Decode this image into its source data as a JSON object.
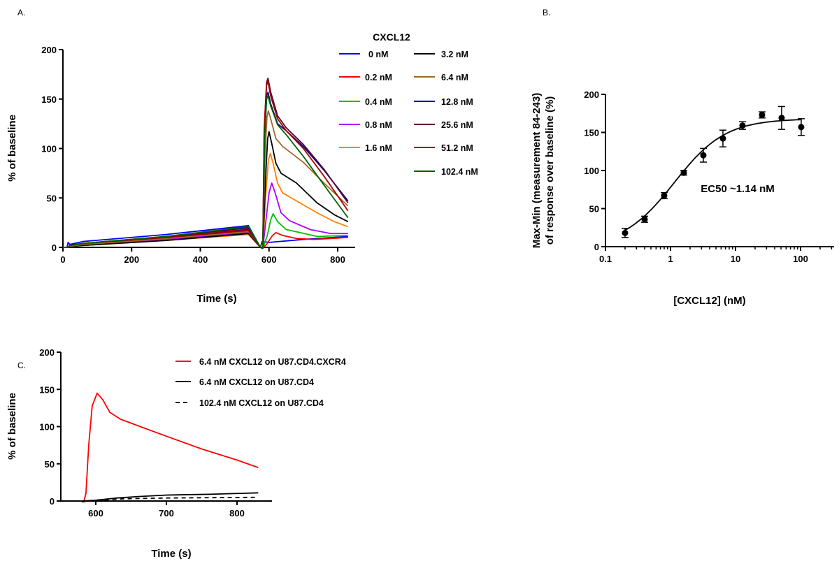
{
  "chart_data": [
    {
      "panel": "A.",
      "type": "line",
      "xlabel": "Time (s)",
      "ylabel": "% of baseline",
      "xlim": [
        0,
        850
      ],
      "ylim": [
        0,
        200
      ],
      "xticks": [
        0,
        200,
        400,
        600,
        800
      ],
      "yticks": [
        0,
        50,
        100,
        150,
        200
      ],
      "legend_title": "CXCL12",
      "legend_placement": "top-right",
      "series": [
        {
          "name": "0 nM",
          "color": "#0000ff",
          "points": [
            [
              0,
              0
            ],
            [
              12,
              0
            ],
            [
              15,
              5
            ],
            [
              20,
              3
            ],
            [
              60,
              6
            ],
            [
              300,
              13
            ],
            [
              540,
              22
            ],
            [
              575,
              0
            ],
            [
              580,
              6
            ],
            [
              600,
              5
            ],
            [
              700,
              8
            ],
            [
              830,
              11
            ]
          ]
        },
        {
          "name": "0.2 nM",
          "color": "#ff0000",
          "points": [
            [
              0,
              0
            ],
            [
              15,
              0
            ],
            [
              20,
              2
            ],
            [
              60,
              4
            ],
            [
              300,
              10
            ],
            [
              540,
              19
            ],
            [
              575,
              0
            ],
            [
              582,
              -1
            ],
            [
              595,
              4
            ],
            [
              610,
              12
            ],
            [
              620,
              15
            ],
            [
              640,
              12
            ],
            [
              680,
              9
            ],
            [
              730,
              8
            ],
            [
              830,
              10
            ]
          ]
        },
        {
          "name": "0.4 nM",
          "color": "#00c000",
          "points": [
            [
              0,
              0
            ],
            [
              15,
              0
            ],
            [
              20,
              2
            ],
            [
              60,
              3
            ],
            [
              300,
              9
            ],
            [
              540,
              17
            ],
            [
              575,
              0
            ],
            [
              582,
              -1
            ],
            [
              595,
              12
            ],
            [
              605,
              28
            ],
            [
              612,
              34
            ],
            [
              625,
              26
            ],
            [
              650,
              18
            ],
            [
              690,
              15
            ],
            [
              740,
              11
            ],
            [
              830,
              12
            ]
          ]
        },
        {
          "name": "0.8 nM",
          "color": "#b000ff",
          "points": [
            [
              0,
              0
            ],
            [
              15,
              0
            ],
            [
              20,
              2
            ],
            [
              60,
              3
            ],
            [
              300,
              8
            ],
            [
              540,
              15
            ],
            [
              575,
              0
            ],
            [
              582,
              -1
            ],
            [
              592,
              30
            ],
            [
              600,
              55
            ],
            [
              608,
              65
            ],
            [
              618,
              55
            ],
            [
              635,
              35
            ],
            [
              660,
              27
            ],
            [
              720,
              18
            ],
            [
              780,
              14
            ],
            [
              830,
              14
            ]
          ]
        },
        {
          "name": "1.6 nM",
          "color": "#ff8000",
          "points": [
            [
              0,
              0
            ],
            [
              15,
              0
            ],
            [
              20,
              1
            ],
            [
              60,
              2
            ],
            [
              300,
              7
            ],
            [
              540,
              13
            ],
            [
              575,
              0
            ],
            [
              582,
              -1
            ],
            [
              590,
              50
            ],
            [
              598,
              88
            ],
            [
              604,
              95
            ],
            [
              612,
              85
            ],
            [
              625,
              65
            ],
            [
              640,
              55
            ],
            [
              680,
              47
            ],
            [
              740,
              35
            ],
            [
              790,
              26
            ],
            [
              830,
              21
            ]
          ]
        },
        {
          "name": "3.2 nM",
          "color": "#000000",
          "points": [
            [
              0,
              0
            ],
            [
              15,
              0
            ],
            [
              20,
              1
            ],
            [
              60,
              2
            ],
            [
              300,
              7
            ],
            [
              540,
              14
            ],
            [
              575,
              0
            ],
            [
              582,
              -1
            ],
            [
              590,
              70
            ],
            [
              596,
              110
            ],
            [
              600,
              117
            ],
            [
              608,
              105
            ],
            [
              620,
              85
            ],
            [
              635,
              75
            ],
            [
              680,
              65
            ],
            [
              740,
              45
            ],
            [
              790,
              33
            ],
            [
              830,
              26
            ]
          ]
        },
        {
          "name": "6.4 nM",
          "color": "#a06828",
          "points": [
            [
              0,
              0
            ],
            [
              15,
              0
            ],
            [
              20,
              1
            ],
            [
              60,
              3
            ],
            [
              300,
              9
            ],
            [
              540,
              16
            ],
            [
              575,
              0
            ],
            [
              582,
              -1
            ],
            [
              588,
              90
            ],
            [
              594,
              132
            ],
            [
              598,
              138
            ],
            [
              605,
              130
            ],
            [
              620,
              110
            ],
            [
              640,
              102
            ],
            [
              700,
              86
            ],
            [
              760,
              65
            ],
            [
              830,
              42
            ]
          ]
        },
        {
          "name": "12.8 nM",
          "color": "#000090",
          "points": [
            [
              0,
              0
            ],
            [
              15,
              0
            ],
            [
              20,
              2
            ],
            [
              60,
              4
            ],
            [
              300,
              11
            ],
            [
              540,
              20
            ],
            [
              575,
              0
            ],
            [
              582,
              -1
            ],
            [
              587,
              110
            ],
            [
              593,
              153
            ],
            [
              597,
              157
            ],
            [
              605,
              145
            ],
            [
              625,
              125
            ],
            [
              650,
              118
            ],
            [
              700,
              102
            ],
            [
              760,
              78
            ],
            [
              830,
              47
            ]
          ]
        },
        {
          "name": "25.6 nM",
          "color": "#600030",
          "points": [
            [
              0,
              0
            ],
            [
              15,
              0
            ],
            [
              20,
              2
            ],
            [
              60,
              4
            ],
            [
              300,
              10
            ],
            [
              540,
              18
            ],
            [
              575,
              0
            ],
            [
              582,
              -1
            ],
            [
              586,
              120
            ],
            [
              593,
              167
            ],
            [
              597,
              171
            ],
            [
              605,
              157
            ],
            [
              625,
              133
            ],
            [
              650,
              121
            ],
            [
              700,
              104
            ],
            [
              760,
              79
            ],
            [
              830,
              45
            ]
          ]
        },
        {
          "name": "51.2 nM",
          "color": "#a00000",
          "points": [
            [
              0,
              0
            ],
            [
              15,
              0
            ],
            [
              20,
              2
            ],
            [
              60,
              4
            ],
            [
              300,
              10
            ],
            [
              540,
              17
            ],
            [
              575,
              0
            ],
            [
              582,
              -1
            ],
            [
              586,
              118
            ],
            [
              593,
              164
            ],
            [
              597,
              168
            ],
            [
              605,
              153
            ],
            [
              625,
              130
            ],
            [
              650,
              118
            ],
            [
              700,
              100
            ],
            [
              760,
              72
            ],
            [
              830,
              37
            ]
          ]
        },
        {
          "name": "102.4 nM",
          "color": "#006000",
          "points": [
            [
              0,
              0
            ],
            [
              15,
              0
            ],
            [
              20,
              2
            ],
            [
              60,
              4
            ],
            [
              300,
              11
            ],
            [
              540,
              21
            ],
            [
              575,
              0
            ],
            [
              582,
              -1
            ],
            [
              587,
              110
            ],
            [
              593,
              150
            ],
            [
              597,
              153
            ],
            [
              605,
              143
            ],
            [
              625,
              124
            ],
            [
              650,
              114
            ],
            [
              700,
              92
            ],
            [
              760,
              63
            ],
            [
              830,
              30
            ]
          ]
        }
      ]
    },
    {
      "panel": "B.",
      "type": "scatter",
      "xscale": "log",
      "xlabel": "[CXCL12] (nM)",
      "ylabel_lines": [
        "Max-Min (measurement 84-243)",
        "of response over baseline (%)"
      ],
      "xlim": [
        0.1,
        300
      ],
      "ylim": [
        0,
        200
      ],
      "xticks": [
        0.1,
        1,
        10,
        100
      ],
      "xtick_labels": [
        "0.1",
        "1",
        "10",
        "100"
      ],
      "yticks": [
        0,
        50,
        100,
        150,
        200
      ],
      "annotation": "EC50 ~1.14 nM",
      "x": [
        0.2,
        0.4,
        0.8,
        1.6,
        3.2,
        6.4,
        12.8,
        25.6,
        51.2,
        102.4
      ],
      "y": [
        18,
        36,
        67,
        97,
        120,
        142,
        159,
        173,
        169,
        157
      ],
      "error": [
        6,
        4,
        4,
        3,
        9,
        11,
        5,
        4,
        15,
        11
      ],
      "fit": {
        "model": "sigmoidal dose-response",
        "bottom": 0,
        "top": 168,
        "ec50": 1.14,
        "hill": 1.1
      }
    },
    {
      "panel": "C.",
      "type": "line",
      "xlabel": "Time (s)",
      "ylabel": "% of baseline",
      "xlim": [
        550,
        850
      ],
      "ylim": [
        0,
        200
      ],
      "xticks": [
        600,
        700,
        800
      ],
      "yticks": [
        0,
        50,
        100,
        150,
        200
      ],
      "legend_placement": "top-right",
      "series": [
        {
          "name": "6.4 nM CXCL12 on U87.CD4.CXCR4",
          "color": "#ff0000",
          "dash": false,
          "points": [
            [
              578,
              0
            ],
            [
              583,
              -1
            ],
            [
              586,
              10
            ],
            [
              590,
              75
            ],
            [
              595,
              128
            ],
            [
              602,
              145
            ],
            [
              610,
              136
            ],
            [
              620,
              119
            ],
            [
              635,
              110
            ],
            [
              660,
              101
            ],
            [
              700,
              87
            ],
            [
              750,
              70
            ],
            [
              800,
              55
            ],
            [
              830,
              45
            ]
          ]
        },
        {
          "name": "6.4 nM CXCL12 on U87.CD4",
          "color": "#000000",
          "dash": false,
          "points": [
            [
              578,
              0
            ],
            [
              600,
              1
            ],
            [
              630,
              4
            ],
            [
              660,
              6
            ],
            [
              700,
              8
            ],
            [
              760,
              9
            ],
            [
              830,
              11
            ]
          ]
        },
        {
          "name": "102.4 nM CXCL12 on U87.CD4",
          "color": "#000000",
          "dash": true,
          "points": [
            [
              580,
              -1
            ],
            [
              600,
              1
            ],
            [
              640,
              3
            ],
            [
              700,
              4
            ],
            [
              830,
              5
            ]
          ]
        }
      ]
    }
  ]
}
